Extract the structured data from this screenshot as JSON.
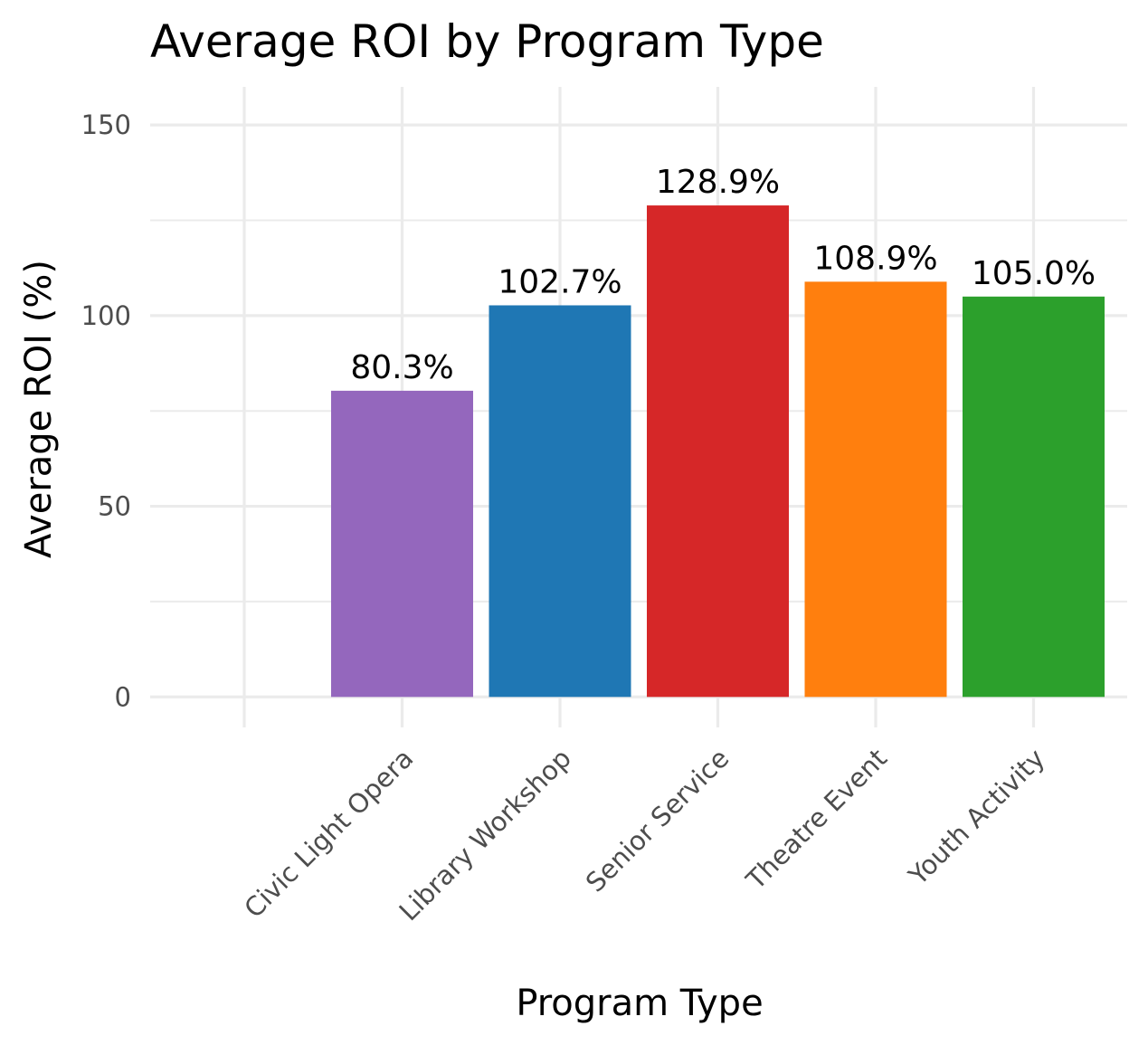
{
  "chart_data": {
    "type": "bar",
    "title": "Average ROI by Program Type",
    "xlabel": "Program Type",
    "ylabel": "Average ROI (%)",
    "categories": [
      "Civic Light Opera",
      "Library Workshop",
      "Senior Service",
      "Theatre Event",
      "Youth Activity"
    ],
    "values": [
      80.3,
      102.7,
      128.9,
      108.9,
      105.0
    ],
    "value_labels": [
      "80.3%",
      "102.7%",
      "128.9%",
      "108.9%",
      "105.0%"
    ],
    "colors": [
      "#9467bd",
      "#1f77b4",
      "#d62728",
      "#ff7f0e",
      "#2ca02c"
    ],
    "yticks": [
      0,
      50,
      100,
      150
    ],
    "ylim": [
      -8,
      160
    ],
    "grid": true,
    "legend": "none"
  }
}
